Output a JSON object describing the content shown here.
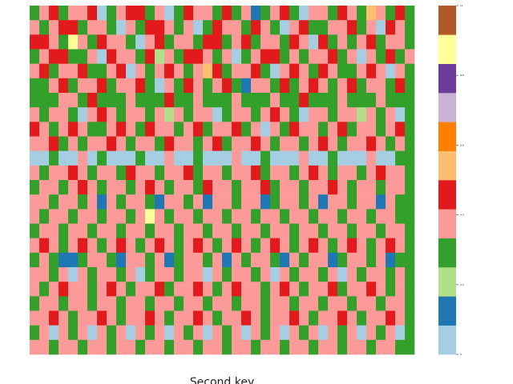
{
  "chart_data": {
    "type": "heatmap",
    "x_label": "Second key",
    "colors": [
      "#a6cee3",
      "#1f78b4",
      "#b2df8a",
      "#33a02c",
      "#fb9a99",
      "#e31a1c",
      "#fdbf6f",
      "#ff7f00",
      "#cab2d6",
      "#6a3d9a",
      "#ffff99",
      "#b15928"
    ],
    "clim": [
      0,
      11
    ],
    "cticks": [
      0,
      2.2,
      4.4,
      6.6,
      8.8,
      11
    ],
    "matrix": [
      [
        3,
        4,
        5,
        3,
        4,
        4,
        5,
        0,
        3,
        4,
        5,
        5,
        3,
        4,
        0,
        3,
        5,
        4,
        4,
        3,
        5,
        3,
        4,
        1,
        3,
        4,
        5,
        3,
        0,
        4,
        4,
        3,
        5,
        4,
        3,
        6,
        4,
        3,
        5,
        3
      ],
      [
        4,
        3,
        4,
        5,
        5,
        3,
        4,
        4,
        3,
        0,
        4,
        3,
        5,
        5,
        4,
        3,
        4,
        0,
        3,
        5,
        4,
        4,
        3,
        5,
        4,
        3,
        0,
        4,
        5,
        3,
        3,
        4,
        4,
        5,
        3,
        4,
        0,
        5,
        4,
        3
      ],
      [
        5,
        5,
        4,
        3,
        10,
        4,
        3,
        5,
        4,
        4,
        3,
        0,
        4,
        5,
        3,
        4,
        4,
        3,
        5,
        5,
        3,
        4,
        5,
        3,
        4,
        4,
        3,
        5,
        4,
        0,
        5,
        3,
        4,
        3,
        4,
        5,
        3,
        4,
        4,
        3
      ],
      [
        3,
        4,
        5,
        5,
        3,
        3,
        4,
        0,
        5,
        4,
        4,
        3,
        5,
        2,
        4,
        3,
        5,
        5,
        4,
        3,
        4,
        0,
        3,
        4,
        5,
        5,
        3,
        4,
        3,
        4,
        4,
        5,
        3,
        4,
        0,
        4,
        3,
        5,
        3,
        4
      ],
      [
        4,
        5,
        3,
        4,
        4,
        5,
        3,
        3,
        4,
        5,
        0,
        4,
        3,
        4,
        5,
        4,
        3,
        4,
        6,
        5,
        3,
        4,
        4,
        5,
        3,
        0,
        4,
        5,
        4,
        3,
        5,
        4,
        3,
        3,
        4,
        5,
        4,
        0,
        4,
        3
      ],
      [
        3,
        3,
        4,
        5,
        3,
        4,
        4,
        5,
        3,
        4,
        4,
        5,
        3,
        0,
        4,
        3,
        5,
        4,
        3,
        4,
        5,
        3,
        1,
        4,
        4,
        3,
        5,
        3,
        4,
        5,
        4,
        3,
        4,
        5,
        3,
        4,
        4,
        3,
        5,
        3
      ],
      [
        3,
        3,
        3,
        4,
        4,
        3,
        5,
        3,
        3,
        3,
        4,
        3,
        3,
        3,
        5,
        3,
        3,
        4,
        3,
        3,
        3,
        4,
        3,
        3,
        3,
        4,
        3,
        3,
        5,
        3,
        3,
        3,
        4,
        3,
        3,
        3,
        4,
        3,
        3,
        3
      ],
      [
        4,
        3,
        4,
        4,
        3,
        0,
        4,
        5,
        4,
        3,
        4,
        4,
        3,
        4,
        2,
        4,
        3,
        4,
        4,
        0,
        3,
        4,
        4,
        3,
        4,
        5,
        4,
        3,
        0,
        4,
        4,
        3,
        4,
        4,
        2,
        4,
        3,
        4,
        0,
        3
      ],
      [
        5,
        4,
        3,
        4,
        5,
        4,
        3,
        3,
        4,
        5,
        4,
        3,
        5,
        4,
        4,
        3,
        4,
        5,
        3,
        4,
        4,
        5,
        3,
        4,
        0,
        4,
        3,
        5,
        4,
        4,
        3,
        4,
        5,
        3,
        4,
        4,
        3,
        4,
        5,
        3
      ],
      [
        4,
        4,
        5,
        3,
        4,
        3,
        4,
        4,
        5,
        4,
        3,
        4,
        4,
        3,
        5,
        4,
        4,
        3,
        4,
        5,
        3,
        4,
        4,
        5,
        4,
        3,
        4,
        4,
        3,
        4,
        5,
        4,
        3,
        4,
        4,
        5,
        4,
        3,
        4,
        3
      ],
      [
        0,
        0,
        3,
        0,
        0,
        4,
        0,
        3,
        0,
        0,
        0,
        3,
        0,
        0,
        4,
        0,
        0,
        3,
        0,
        0,
        0,
        4,
        0,
        0,
        3,
        0,
        0,
        0,
        4,
        0,
        0,
        3,
        0,
        0,
        0,
        4,
        0,
        0,
        3,
        3
      ],
      [
        4,
        3,
        4,
        4,
        5,
        4,
        3,
        4,
        4,
        3,
        5,
        4,
        4,
        3,
        4,
        4,
        5,
        3,
        4,
        4,
        3,
        4,
        4,
        5,
        3,
        4,
        4,
        3,
        4,
        5,
        4,
        3,
        4,
        4,
        3,
        4,
        5,
        4,
        4,
        3
      ],
      [
        3,
        4,
        4,
        3,
        4,
        5,
        4,
        3,
        4,
        4,
        3,
        4,
        5,
        4,
        3,
        4,
        4,
        3,
        5,
        4,
        4,
        3,
        4,
        4,
        5,
        3,
        4,
        4,
        3,
        4,
        4,
        5,
        4,
        3,
        4,
        4,
        3,
        4,
        4,
        3
      ],
      [
        4,
        4,
        3,
        4,
        4,
        3,
        4,
        1,
        4,
        3,
        4,
        4,
        3,
        1,
        4,
        4,
        3,
        4,
        1,
        4,
        4,
        3,
        4,
        4,
        1,
        3,
        4,
        4,
        3,
        4,
        1,
        4,
        4,
        3,
        4,
        4,
        1,
        4,
        3,
        3
      ],
      [
        4,
        3,
        4,
        4,
        3,
        4,
        4,
        3,
        4,
        4,
        3,
        4,
        10,
        4,
        3,
        4,
        4,
        3,
        4,
        4,
        3,
        4,
        4,
        3,
        4,
        4,
        3,
        4,
        4,
        3,
        4,
        4,
        3,
        4,
        4,
        3,
        4,
        4,
        3,
        3
      ],
      [
        3,
        4,
        4,
        3,
        4,
        4,
        3,
        4,
        4,
        3,
        4,
        4,
        3,
        4,
        4,
        3,
        4,
        4,
        3,
        4,
        4,
        3,
        4,
        4,
        3,
        4,
        4,
        3,
        4,
        4,
        3,
        4,
        4,
        3,
        4,
        4,
        3,
        4,
        4,
        3
      ],
      [
        4,
        5,
        4,
        3,
        4,
        5,
        4,
        3,
        4,
        5,
        4,
        3,
        4,
        5,
        4,
        3,
        4,
        5,
        4,
        3,
        4,
        5,
        4,
        3,
        4,
        5,
        4,
        3,
        4,
        5,
        4,
        3,
        4,
        5,
        4,
        3,
        4,
        5,
        4,
        3
      ],
      [
        3,
        4,
        3,
        1,
        1,
        3,
        4,
        4,
        3,
        1,
        4,
        4,
        3,
        4,
        1,
        3,
        4,
        4,
        3,
        4,
        1,
        4,
        3,
        4,
        4,
        3,
        1,
        4,
        3,
        4,
        4,
        1,
        3,
        4,
        4,
        3,
        4,
        1,
        3,
        3
      ],
      [
        4,
        4,
        3,
        4,
        0,
        4,
        3,
        4,
        4,
        3,
        4,
        0,
        3,
        4,
        4,
        3,
        4,
        4,
        0,
        4,
        3,
        4,
        4,
        3,
        4,
        0,
        4,
        3,
        4,
        4,
        3,
        4,
        0,
        4,
        3,
        4,
        4,
        3,
        4,
        3
      ],
      [
        4,
        3,
        4,
        5,
        4,
        4,
        3,
        4,
        5,
        4,
        3,
        4,
        4,
        5,
        3,
        4,
        4,
        5,
        4,
        3,
        4,
        5,
        4,
        4,
        3,
        4,
        5,
        4,
        3,
        4,
        4,
        5,
        3,
        4,
        4,
        5,
        4,
        3,
        4,
        3
      ],
      [
        3,
        4,
        4,
        3,
        4,
        4,
        3,
        4,
        4,
        3,
        4,
        4,
        3,
        4,
        4,
        3,
        4,
        4,
        3,
        4,
        4,
        3,
        4,
        4,
        3,
        4,
        4,
        3,
        4,
        4,
        3,
        4,
        4,
        3,
        4,
        4,
        3,
        4,
        4,
        3
      ],
      [
        4,
        4,
        5,
        4,
        3,
        4,
        4,
        5,
        4,
        3,
        4,
        4,
        5,
        4,
        3,
        4,
        4,
        5,
        4,
        3,
        4,
        4,
        5,
        4,
        3,
        4,
        4,
        5,
        4,
        3,
        4,
        4,
        5,
        4,
        3,
        4,
        4,
        5,
        4,
        3
      ],
      [
        3,
        4,
        0,
        4,
        3,
        4,
        0,
        4,
        3,
        4,
        0,
        4,
        3,
        4,
        0,
        4,
        3,
        4,
        0,
        4,
        3,
        4,
        0,
        4,
        3,
        4,
        0,
        4,
        3,
        4,
        0,
        4,
        3,
        4,
        0,
        4,
        3,
        4,
        0,
        3
      ],
      [
        4,
        4,
        3,
        4,
        4,
        3,
        4,
        4,
        3,
        4,
        4,
        3,
        4,
        4,
        3,
        4,
        4,
        3,
        4,
        4,
        3,
        4,
        4,
        3,
        4,
        4,
        3,
        4,
        4,
        3,
        4,
        4,
        3,
        4,
        4,
        3,
        4,
        4,
        3,
        3
      ]
    ]
  }
}
